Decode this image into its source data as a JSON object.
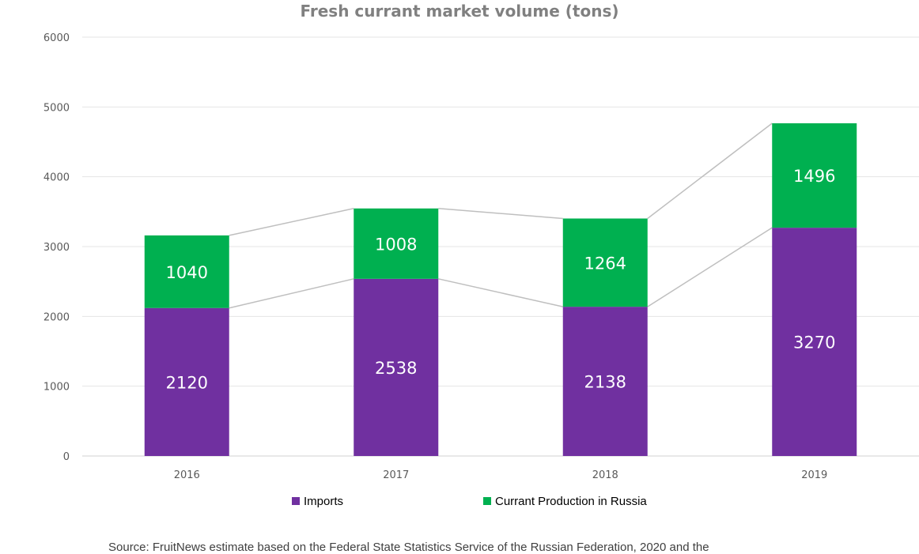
{
  "chart_data": {
    "type": "bar",
    "stacked": true,
    "title": "Fresh currant market volume (tons)",
    "categories": [
      "2016",
      "2017",
      "2018",
      "2019"
    ],
    "series": [
      {
        "name": "Imports",
        "values": [
          2120,
          2538,
          2138,
          3270
        ],
        "color": "#7030a0"
      },
      {
        "name": "Currant Production in Russia",
        "values": [
          1040,
          1008,
          1264,
          1496
        ],
        "color": "#00b050"
      }
    ],
    "ylim": [
      0,
      6000
    ],
    "yticks": [
      0,
      1000,
      2000,
      3000,
      4000,
      5000,
      6000
    ],
    "grid": true,
    "series_lines": true,
    "legend": "bottom"
  },
  "source_note": "Source: FruitNews estimate based on the Federal State Statistics Service of the Russian Federation, 2020 and the"
}
